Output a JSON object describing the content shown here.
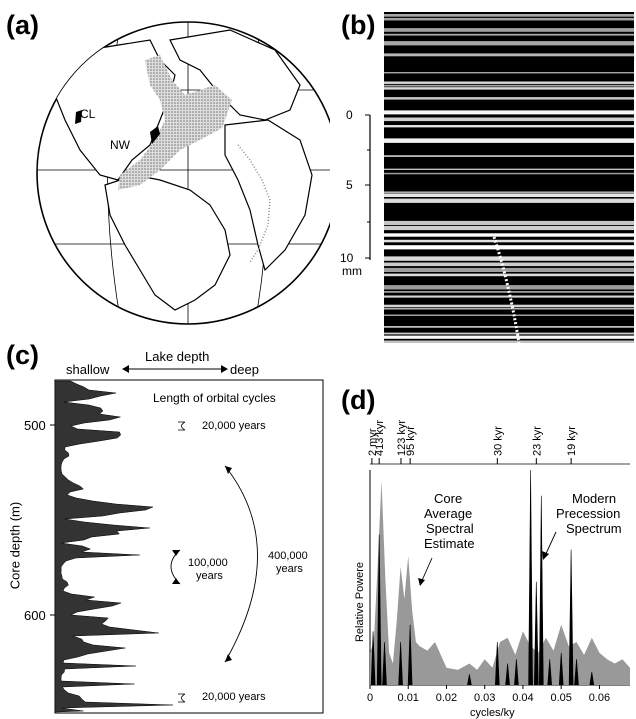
{
  "panels": {
    "a": {
      "letter": "(a)",
      "sites": {
        "cl": "CL",
        "nw": "NW"
      }
    },
    "b": {
      "letter": "(b)",
      "scale_ticks": [
        "0",
        "5",
        "10"
      ],
      "scale_unit": "mm"
    },
    "c": {
      "letter": "(c)",
      "lake_depth_label": "Lake depth",
      "shallow_label": "shallow",
      "deep_label": "deep",
      "title": "Length of orbital cycles",
      "ylabel": "Core depth  (m)",
      "y_ticks": [
        "500",
        "600"
      ],
      "annotations": {
        "cycle_20k_top": "20,000 years",
        "cycle_100k_line1": "100,000",
        "cycle_100k_line2": "years",
        "cycle_400k_line1": "400,000",
        "cycle_400k_line2": "years",
        "cycle_20k_bottom": "20,000 years"
      }
    },
    "d": {
      "letter": "(d)",
      "period_labels": [
        "2 myr",
        "413 kyr",
        "123 kyr",
        "95 kyr",
        "30 kyr",
        "23 kyr",
        "19 kyr"
      ],
      "core_label": [
        "Core",
        "Average",
        "Spectral",
        "Estimate"
      ],
      "modern_label": [
        "Modern",
        "Precession",
        "Spectrum"
      ],
      "ylabel": "Relative Powere",
      "xlabel": "cycles/ky",
      "x_ticks": [
        "0",
        "0.01",
        "0.02",
        "0.03",
        "0.04",
        "0.05",
        "0.06"
      ]
    }
  },
  "chart_data": {
    "type": "area",
    "xlabel": "cycles/ky",
    "ylabel": "Relative Powere",
    "xlim": [
      0,
      0.068
    ],
    "x_ticks": [
      0,
      0.01,
      0.02,
      0.03,
      0.04,
      0.05,
      0.06
    ],
    "period_markers": [
      {
        "label": "2 myr",
        "freq": 0.0005
      },
      {
        "label": "413 kyr",
        "freq": 0.0024
      },
      {
        "label": "123 kyr",
        "freq": 0.0081
      },
      {
        "label": "95 kyr",
        "freq": 0.0105
      },
      {
        "label": "30 kyr",
        "freq": 0.0333
      },
      {
        "label": "23 kyr",
        "freq": 0.0435
      },
      {
        "label": "19 kyr",
        "freq": 0.0526
      }
    ],
    "series": [
      {
        "name": "Core Average Spectral Estimate",
        "color": "#999999",
        "x": [
          0,
          0.001,
          0.002,
          0.003,
          0.004,
          0.005,
          0.006,
          0.007,
          0.008,
          0.009,
          0.01,
          0.011,
          0.012,
          0.013,
          0.015,
          0.017,
          0.02,
          0.023,
          0.026,
          0.028,
          0.03,
          0.032,
          0.034,
          0.036,
          0.038,
          0.04,
          0.042,
          0.044,
          0.046,
          0.048,
          0.05,
          0.052,
          0.054,
          0.056,
          0.058,
          0.06,
          0.062,
          0.064,
          0.066,
          0.068
        ],
        "y": [
          0.15,
          0.2,
          0.55,
          0.95,
          0.5,
          0.15,
          0.1,
          0.3,
          0.55,
          0.4,
          0.6,
          0.35,
          0.2,
          0.18,
          0.16,
          0.2,
          0.08,
          0.07,
          0.1,
          0.07,
          0.12,
          0.08,
          0.2,
          0.22,
          0.14,
          0.25,
          0.18,
          0.15,
          0.22,
          0.16,
          0.28,
          0.18,
          0.2,
          0.14,
          0.22,
          0.15,
          0.12,
          0.1,
          0.12,
          0.08
        ]
      },
      {
        "name": "Modern Precession Spectrum",
        "color": "#000000",
        "x": [
          0.0008,
          0.0024,
          0.0038,
          0.008,
          0.0105,
          0.026,
          0.0333,
          0.036,
          0.0383,
          0.042,
          0.0435,
          0.0448,
          0.047,
          0.05,
          0.0526,
          0.054,
          0.058
        ],
        "y": [
          0.25,
          0.7,
          0.2,
          0.2,
          0.28,
          0.05,
          0.2,
          0.1,
          0.12,
          1.0,
          0.48,
          0.88,
          0.12,
          0.15,
          0.63,
          0.12,
          0.06
        ]
      }
    ]
  }
}
